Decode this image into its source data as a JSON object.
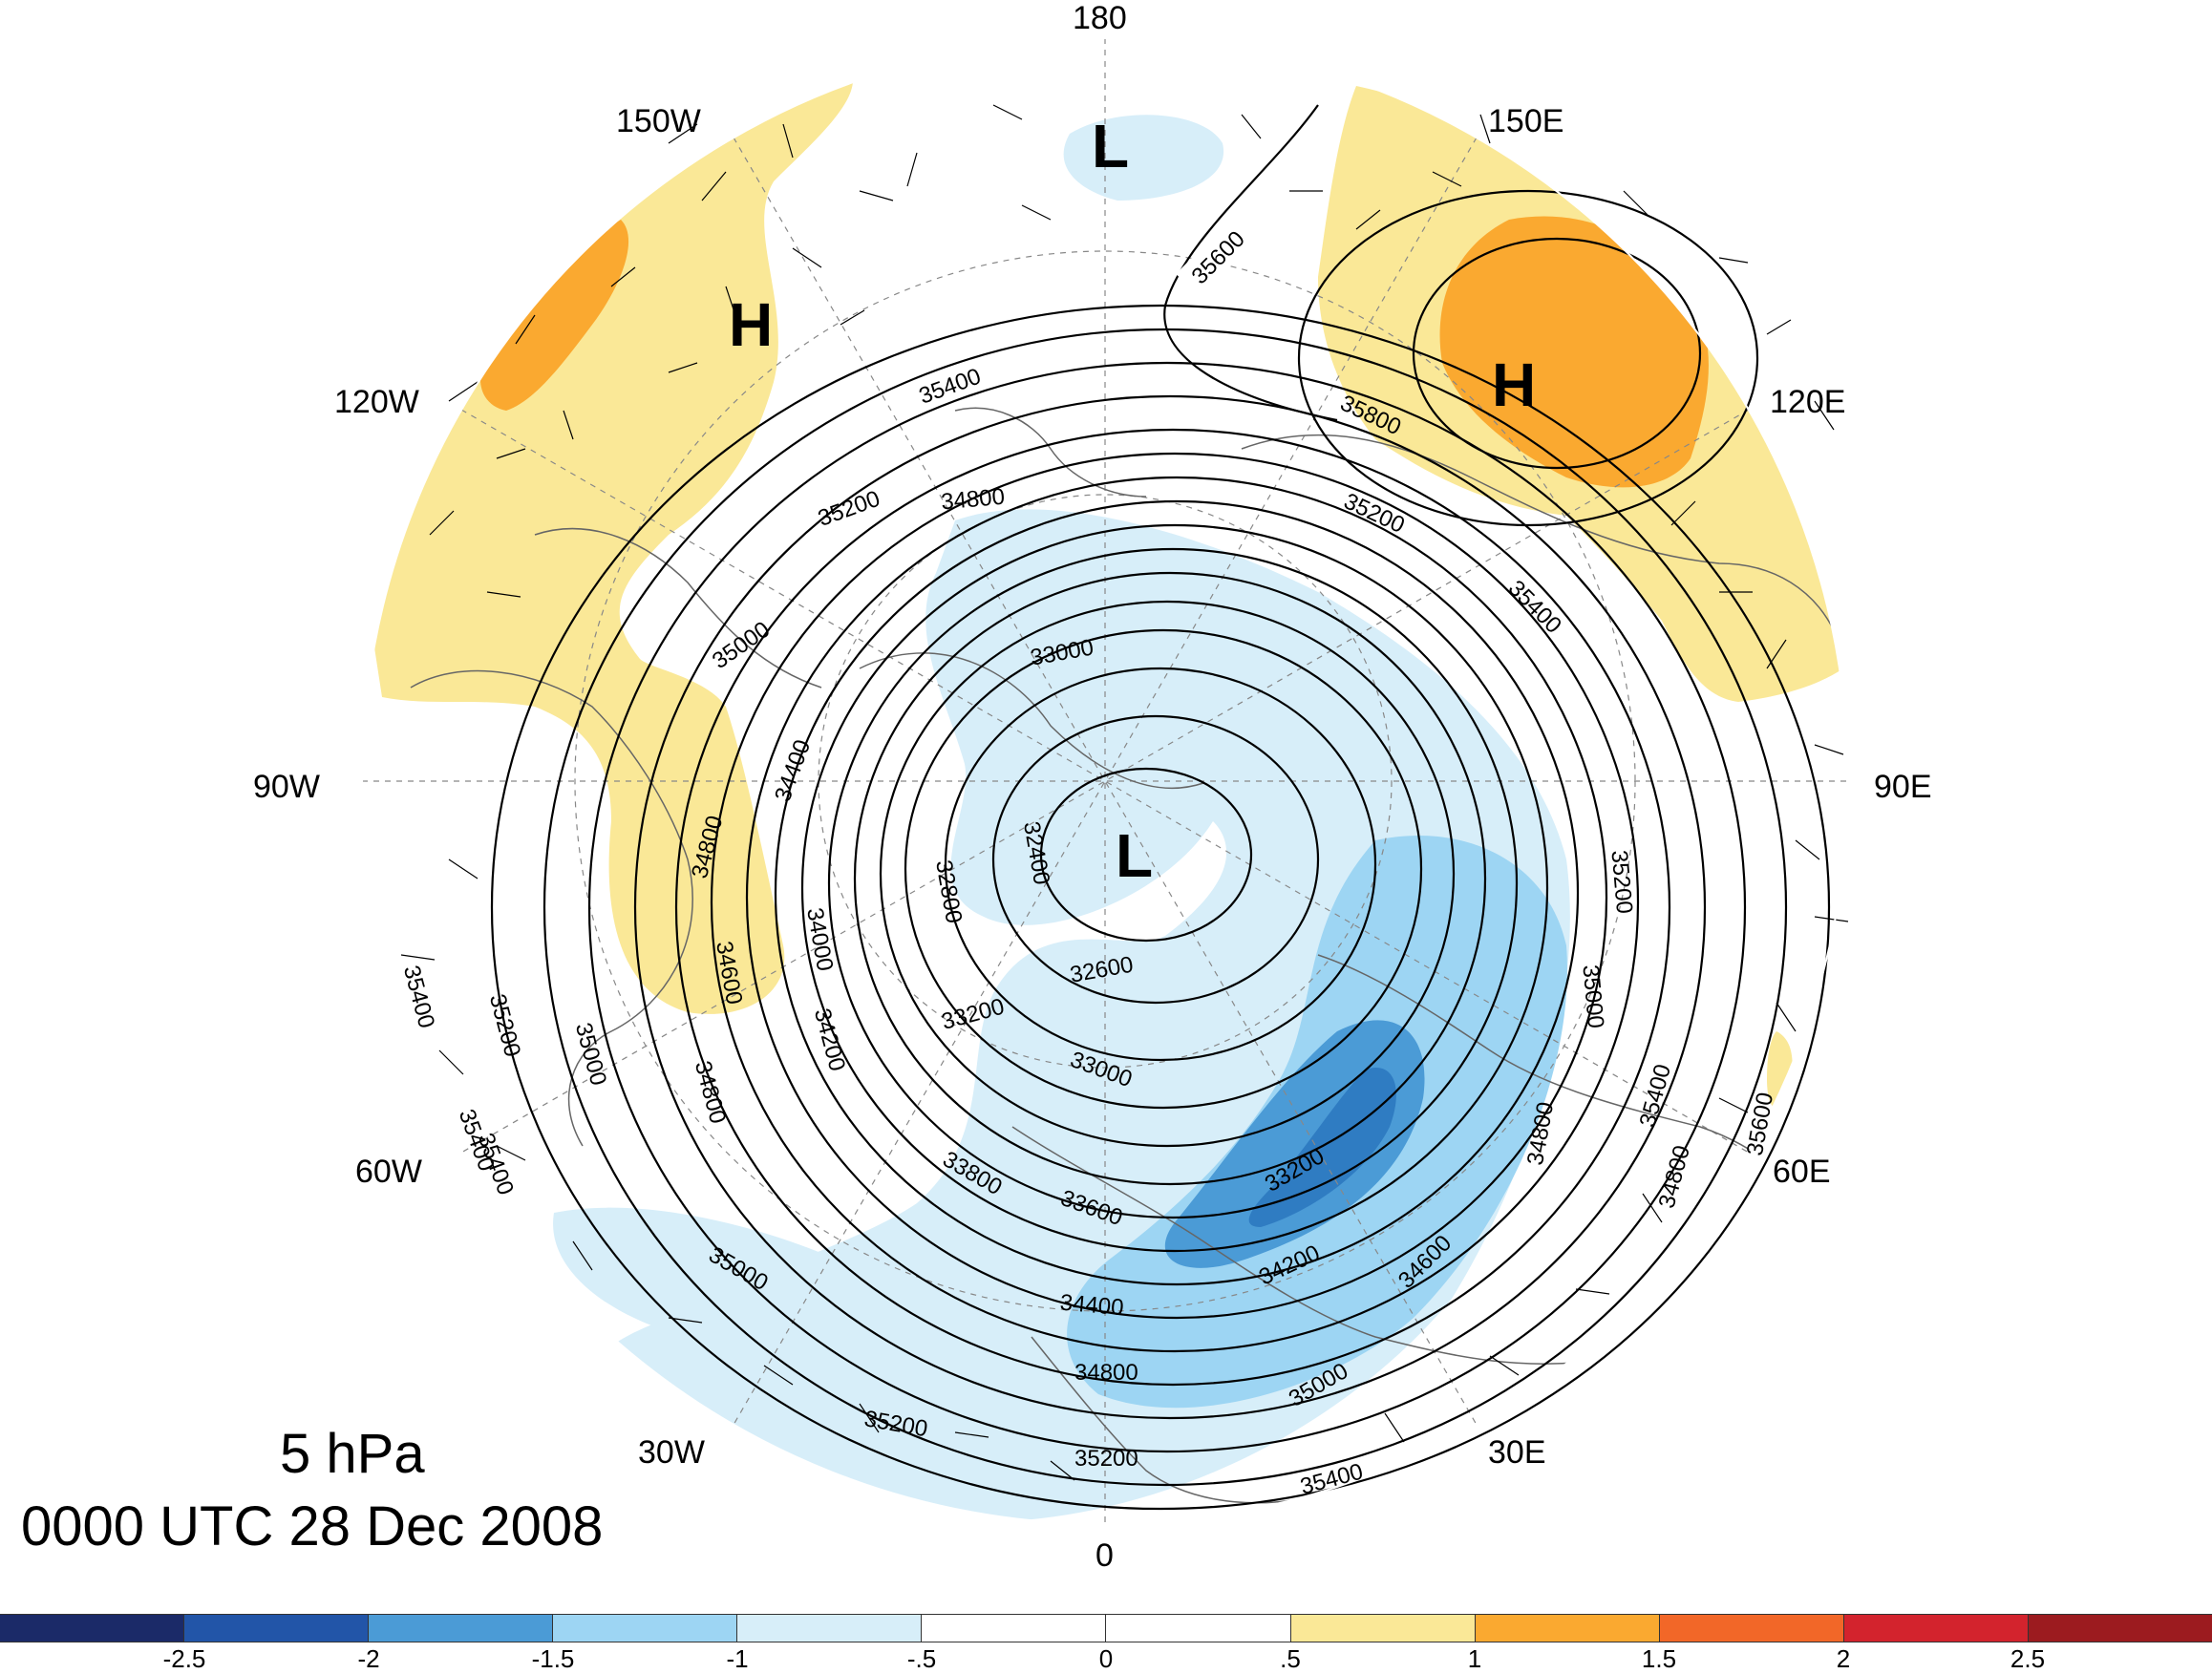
{
  "title": {
    "level": "5 hPa",
    "time": "0000 UTC 28 Dec 2008"
  },
  "longitude_labels": [
    {
      "id": "lon-180",
      "text": "180"
    },
    {
      "id": "lon-150w",
      "text": "150W"
    },
    {
      "id": "lon-150e",
      "text": "150E"
    },
    {
      "id": "lon-120w",
      "text": "120W"
    },
    {
      "id": "lon-120e",
      "text": "120E"
    },
    {
      "id": "lon-90w",
      "text": "90W"
    },
    {
      "id": "lon-90e",
      "text": "90E"
    },
    {
      "id": "lon-60w",
      "text": "60W"
    },
    {
      "id": "lon-60e",
      "text": "60E"
    },
    {
      "id": "lon-30w",
      "text": "30W"
    },
    {
      "id": "lon-30e",
      "text": "30E"
    },
    {
      "id": "lon-0",
      "text": "0"
    }
  ],
  "pressure_centers": [
    {
      "id": "low-top",
      "text": "L"
    },
    {
      "id": "low-polar",
      "text": "L"
    },
    {
      "id": "high-pacific",
      "text": "H"
    },
    {
      "id": "high-asia",
      "text": "H"
    }
  ],
  "contour_labels": [
    "35600",
    "35400",
    "35800",
    "35200",
    "34800",
    "35200",
    "35400",
    "35000",
    "33000",
    "34400",
    "34800",
    "34600",
    "32400",
    "32800",
    "34000",
    "35200",
    "35000",
    "32600",
    "33200",
    "34200",
    "34800",
    "33000",
    "35400",
    "35200",
    "35000",
    "35400",
    "34800",
    "33800",
    "33200",
    "33600",
    "34800",
    "35400",
    "35600",
    "34600",
    "34200",
    "34400",
    "35000",
    "35000",
    "34800",
    "35200",
    "35200",
    "35400",
    "35400"
  ],
  "colorbar": {
    "colors": [
      "#1b2a68",
      "#2255a8",
      "#4b9bd6",
      "#9dd5f3",
      "#d7eef9",
      "#ffffff",
      "#ffffff",
      "#fae897",
      "#faa930",
      "#f26728",
      "#d3232d",
      "#9c1b1f"
    ],
    "tick_labels": [
      "-2.5",
      "-2",
      "-1.5",
      "-1",
      "-.5",
      "0",
      ".5",
      "1",
      "1.5",
      "2",
      "2.5"
    ]
  }
}
